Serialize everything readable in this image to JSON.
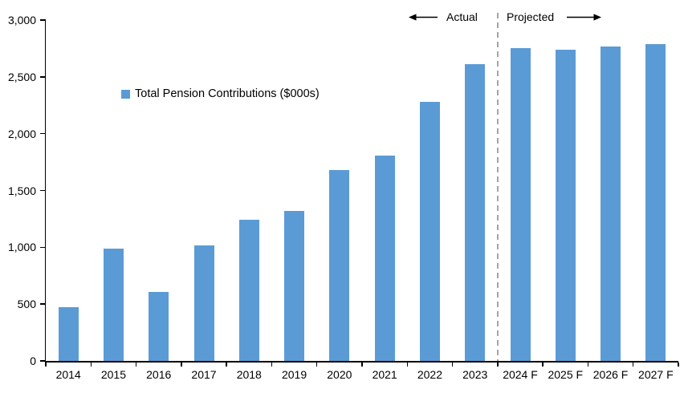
{
  "chart_data": {
    "type": "bar",
    "title": "",
    "xlabel": "",
    "ylabel": "",
    "legend": "Total Pension Contributions ($000s)",
    "legend_position": "inside-top-left",
    "grid": false,
    "categories": [
      "2014",
      "2015",
      "2016",
      "2017",
      "2018",
      "2019",
      "2020",
      "2021",
      "2022",
      "2023",
      "2024 F",
      "2025 F",
      "2026 F",
      "2027 F"
    ],
    "values": [
      470,
      990,
      610,
      1020,
      1240,
      1320,
      1680,
      1810,
      2280,
      2610,
      2750,
      2740,
      2770,
      2790
    ],
    "ylim": [
      0,
      3000
    ],
    "ytick_values": [
      0,
      500,
      1000,
      1500,
      2000,
      2500,
      3000
    ],
    "ytick_labels": [
      "0",
      "500",
      "1,000",
      "1,500",
      "2,000",
      "2,500",
      "3,000"
    ],
    "annotations": {
      "actual_label": "Actual",
      "projected_label": "Projected",
      "divider_after_category": "2023"
    },
    "colors": {
      "bar": "#5B9BD5",
      "divider": "#A6A6A6",
      "axis": "#000000",
      "text": "#000000"
    }
  }
}
